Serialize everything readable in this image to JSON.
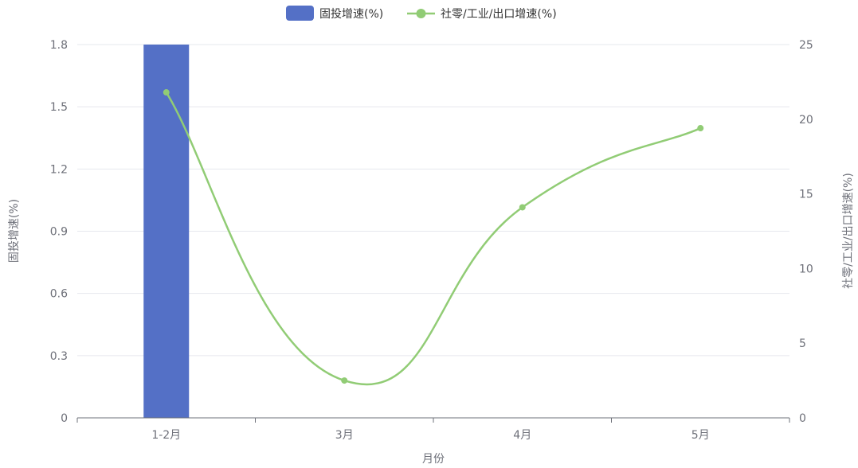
{
  "chart_data": {
    "type": "bar",
    "categories": [
      "1-2月",
      "3月",
      "4月",
      "5月"
    ],
    "series": [
      {
        "name": "固投增速(%)",
        "type": "bar",
        "axis": "left",
        "color": "#5470c6",
        "values": [
          1.8,
          null,
          null,
          null
        ]
      },
      {
        "name": "社零/工业/出口增速(%)",
        "type": "line",
        "smooth": true,
        "axis": "right",
        "color": "#91cc75",
        "values": [
          21.8,
          2.5,
          14.1,
          19.4
        ]
      }
    ],
    "xlabel": "月份",
    "ylabel_left": "固投增速(%)",
    "ylabel_right": "社零/工业/出口增速(%)",
    "ylim_left": [
      0,
      1.8
    ],
    "yticks_left": [
      "0",
      "0.3",
      "0.6",
      "0.9",
      "1.2",
      "1.5",
      "1.8"
    ],
    "ylim_right": [
      0,
      25
    ],
    "yticks_right": [
      "0",
      "5",
      "10",
      "15",
      "20",
      "25"
    ],
    "grid": true,
    "legend": "top-center"
  }
}
